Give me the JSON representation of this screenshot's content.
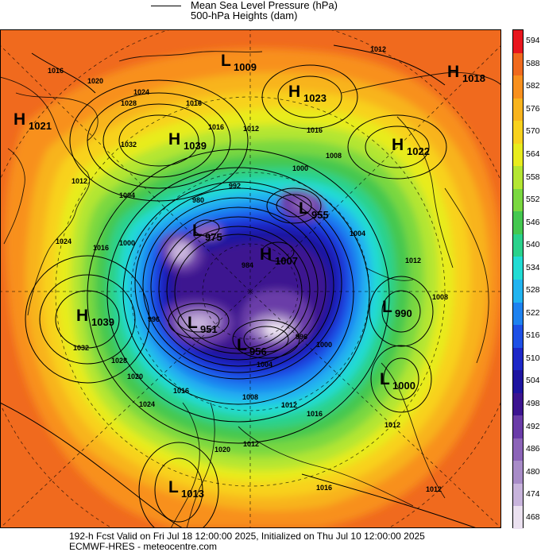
{
  "legend": {
    "line1": "Mean Sea Level Pressure (hPa)",
    "line2": "500-hPa Heights (dam)"
  },
  "colorbar": {
    "levels": [
      "594",
      "588",
      "582",
      "576",
      "570",
      "564",
      "558",
      "552",
      "546",
      "540",
      "534",
      "528",
      "522",
      "516",
      "510",
      "504",
      "498",
      "492",
      "486",
      "480",
      "474",
      "468"
    ],
    "colors": [
      "#e8161e",
      "#f06a1e",
      "#f8901e",
      "#f8b41e",
      "#f8d21e",
      "#e8ec1e",
      "#b4e632",
      "#7ad840",
      "#44c850",
      "#2ad28c",
      "#22dcd4",
      "#22b4f0",
      "#1e82f0",
      "#1e50e6",
      "#1e28c8",
      "#1e14a0",
      "#3c1490",
      "#6a3ca8",
      "#8c64b8",
      "#a88cc8",
      "#c8b4dc",
      "#ebe1f0"
    ]
  },
  "map": {
    "highs": [
      {
        "id": "h1021",
        "letter": "H",
        "value": "1021"
      },
      {
        "id": "h1039a",
        "letter": "H",
        "value": "1039"
      },
      {
        "id": "h1023",
        "letter": "H",
        "value": "1023"
      },
      {
        "id": "h1018",
        "letter": "H",
        "value": "1018"
      },
      {
        "id": "h1022",
        "letter": "H",
        "value": "1022"
      },
      {
        "id": "h1039b",
        "letter": "H",
        "value": "1039"
      },
      {
        "id": "h1007",
        "letter": "H",
        "value": "1007"
      }
    ],
    "lows": [
      {
        "id": "l1009",
        "letter": "L",
        "value": "1009"
      },
      {
        "id": "l955",
        "letter": "L",
        "value": "955"
      },
      {
        "id": "l975",
        "letter": "L",
        "value": "975"
      },
      {
        "id": "l990",
        "letter": "L",
        "value": "990"
      },
      {
        "id": "l951",
        "letter": "L",
        "value": "951"
      },
      {
        "id": "l956",
        "letter": "L",
        "value": "956"
      },
      {
        "id": "l1000",
        "letter": "L",
        "value": "1000"
      },
      {
        "id": "l1013",
        "letter": "L",
        "value": "1013"
      }
    ],
    "isobar_labels": [
      "1016",
      "1020",
      "1024",
      "1028",
      "1032",
      "1012",
      "1008",
      "1004",
      "1000",
      "996",
      "992",
      "988",
      "984",
      "980",
      "976"
    ]
  },
  "footer": {
    "line1": "192-h Fcst Valid on Fri Jul 18 12:00:00 2025, Initialized on Thu Jul 10 12:00:00 2025",
    "line2": "ECMWF-HRES  - meteocentre.com"
  }
}
